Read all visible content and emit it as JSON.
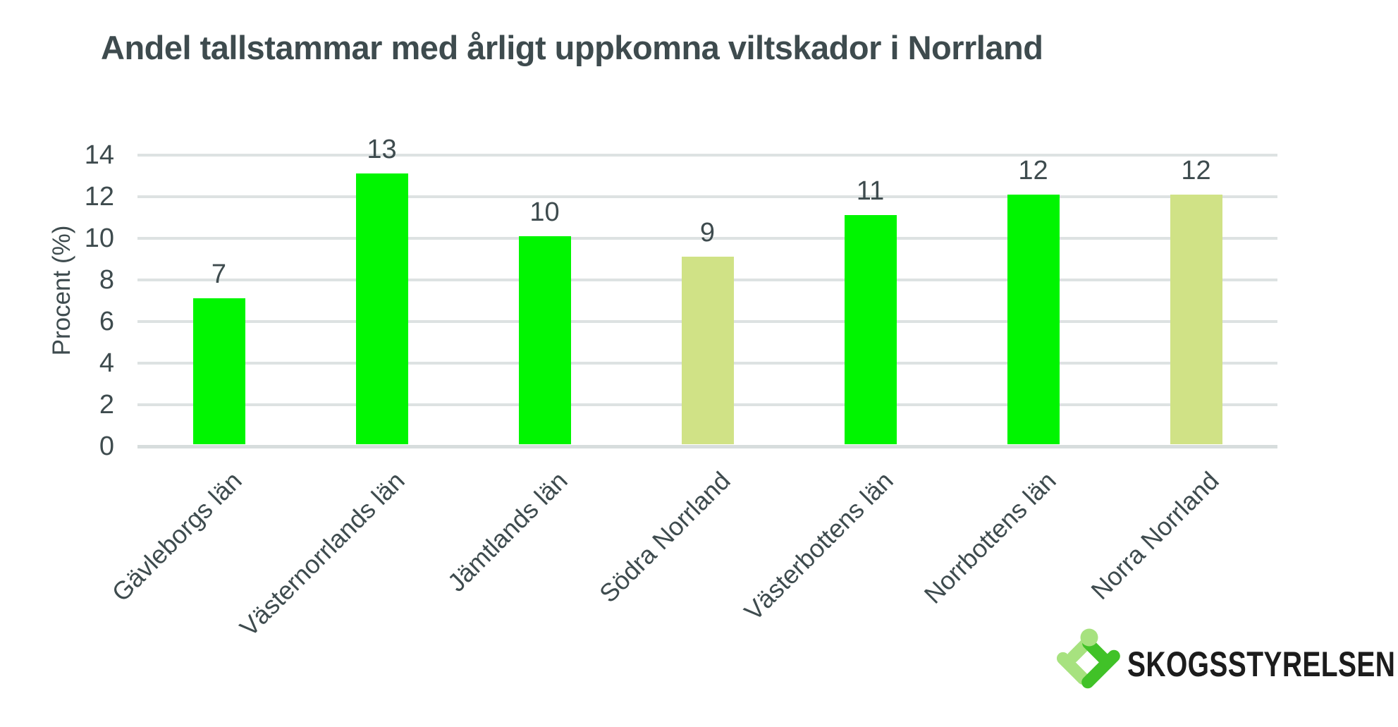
{
  "page": {
    "background": "#ffffff"
  },
  "header": {
    "title": "Andel tallstammar med årligt uppkomna viltskador i Norrland",
    "title_color": "#3e4b4e"
  },
  "chart_data": {
    "type": "bar",
    "title": "Andel tallstammar med årligt uppkomna viltskador i Norrland",
    "xlabel": "",
    "ylabel": "Procent (%)",
    "ylim": [
      0,
      14
    ],
    "yticks": [
      0,
      2,
      4,
      6,
      8,
      10,
      12,
      14
    ],
    "grid": "horizontal",
    "legend": false,
    "categories": [
      "Gävleborgs län",
      "Västernorrlands län",
      "Jämtlands län",
      "Södra Norrland",
      "Västerbottens län",
      "Norrbottens län",
      "Norra Norrland"
    ],
    "values": [
      7,
      13,
      10,
      9,
      11,
      12,
      12
    ],
    "data_labels": [
      "7",
      "13",
      "10",
      "9",
      "11",
      "12",
      "12"
    ],
    "bar_colors": [
      "#00f500",
      "#00f500",
      "#00f500",
      "#d0e286",
      "#00f500",
      "#00f500",
      "#d0e286"
    ],
    "colors": {
      "county_bar": "#00f500",
      "region_bar": "#d0e286",
      "text": "#3e4b4e",
      "gridline": "#dde2e2"
    }
  },
  "branding": {
    "logo_text": "SKOGSSTYRELSEN",
    "logo_icon": "skogsstyrelsen-mark",
    "colors": {
      "light_green": "#a7e27f",
      "dark_green": "#41c228",
      "text": "#1c1c1c"
    }
  }
}
